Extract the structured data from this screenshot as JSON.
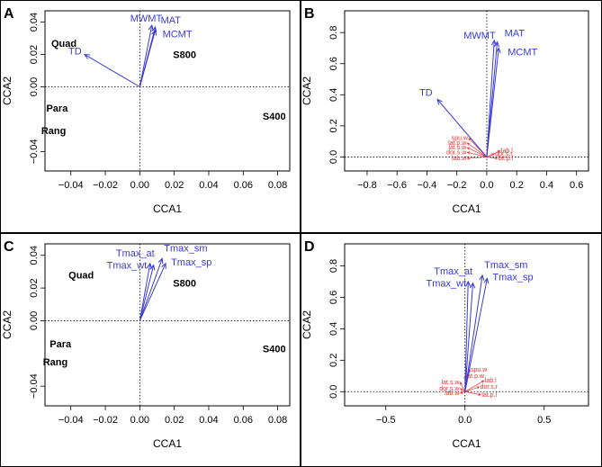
{
  "figure": {
    "palette": {
      "arrow": "#3a3ad8",
      "sites": "#000000",
      "species": "#e3342f",
      "frame": "#000000"
    }
  },
  "chart_data": [
    {
      "panel": "A",
      "type": "scatter",
      "xlabel": "CCA1",
      "ylabel": "CCA2",
      "xlim": [
        -0.055,
        0.087
      ],
      "ylim": [
        -0.052,
        0.047
      ],
      "xticks": [
        "−0.04",
        "−0.02",
        "0.00",
        "0.02",
        "0.04",
        "0.06",
        "0.08"
      ],
      "xtick_values": [
        -0.04,
        -0.02,
        0.0,
        0.02,
        0.04,
        0.06,
        0.08
      ],
      "yticks": [
        "−0.04",
        "0.00",
        "0.02",
        "0.04"
      ],
      "ytick_values": [
        -0.04,
        0.0,
        0.02,
        0.04
      ],
      "sites": [
        {
          "label": "Quad",
          "x": -0.044,
          "y": 0.027
        },
        {
          "label": "S800",
          "x": 0.026,
          "y": 0.02
        },
        {
          "label": "Para",
          "x": -0.048,
          "y": -0.013
        },
        {
          "label": "Rang",
          "x": -0.05,
          "y": -0.027
        },
        {
          "label": "S400",
          "x": 0.078,
          "y": -0.018
        }
      ],
      "vectors": [
        {
          "label": "MWMT",
          "x": 0.007,
          "y": 0.038
        },
        {
          "label": "MAT",
          "x": 0.009,
          "y": 0.037
        },
        {
          "label": "MCMT",
          "x": 0.009,
          "y": 0.035
        },
        {
          "label": "TD",
          "x": -0.032,
          "y": 0.02
        }
      ],
      "species": []
    },
    {
      "panel": "B",
      "type": "scatter",
      "xlabel": "CCA1",
      "ylabel": "CCA2",
      "xlim": [
        -0.95,
        0.68
      ],
      "ylim": [
        -0.09,
        0.94
      ],
      "xticks": [
        "−0.8",
        "−0.6",
        "−0.4",
        "−0.2",
        "0.0",
        "0.2",
        "0.4",
        "0.6"
      ],
      "xtick_values": [
        -0.8,
        -0.6,
        -0.4,
        -0.2,
        0.0,
        0.2,
        0.4,
        0.6
      ],
      "yticks": [
        "0.0",
        "0.2",
        "0.4",
        "0.6",
        "0.8"
      ],
      "ytick_values": [
        0.0,
        0.2,
        0.4,
        0.6,
        0.8
      ],
      "sites": [],
      "vectors": [
        {
          "label": "MWMT",
          "x": 0.05,
          "y": 0.75
        },
        {
          "label": "MAT",
          "x": 0.07,
          "y": 0.74
        },
        {
          "label": "MCMT",
          "x": 0.08,
          "y": 0.7
        },
        {
          "label": "TD",
          "x": -0.33,
          "y": 0.37
        }
      ],
      "species": [
        {
          "label": "spu.w",
          "x": -0.12,
          "y": 0.12
        },
        {
          "label": "lat.p.w",
          "x": -0.13,
          "y": 0.09
        },
        {
          "label": "lat.s.w",
          "x": -0.13,
          "y": 0.06
        },
        {
          "label": "dor.s.w",
          "x": -0.13,
          "y": 0.03
        },
        {
          "label": "dor.s.r",
          "x": 0.05,
          "y": 0.02
        },
        {
          "label": "lab.w",
          "x": -0.13,
          "y": -0.01
        },
        {
          "label": "lab.l",
          "x": 0.09,
          "y": 0.04
        },
        {
          "label": "lat.p.l",
          "x": 0.07,
          "y": -0.01
        }
      ]
    },
    {
      "panel": "C",
      "type": "scatter",
      "xlabel": "CCA1",
      "ylabel": "CCA2",
      "xlim": [
        -0.055,
        0.087
      ],
      "ylim": [
        -0.052,
        0.047
      ],
      "xticks": [
        "−0.04",
        "−0.02",
        "0.00",
        "0.02",
        "0.04",
        "0.06",
        "0.08"
      ],
      "xtick_values": [
        -0.04,
        -0.02,
        0.0,
        0.02,
        0.04,
        0.06,
        0.08
      ],
      "yticks": [
        "−0.04",
        "0.00",
        "0.02",
        "0.04"
      ],
      "ytick_values": [
        -0.04,
        0.0,
        0.02,
        0.04
      ],
      "sites": [
        {
          "label": "Quad",
          "x": -0.034,
          "y": 0.028
        },
        {
          "label": "S800",
          "x": 0.026,
          "y": 0.023
        },
        {
          "label": "Para",
          "x": -0.046,
          "y": -0.014
        },
        {
          "label": "Rang",
          "x": -0.049,
          "y": -0.025
        },
        {
          "label": "S400",
          "x": 0.078,
          "y": -0.017
        }
      ],
      "vectors": [
        {
          "label": "Tmax_at",
          "x": 0.006,
          "y": 0.035
        },
        {
          "label": "Tmax_wt",
          "x": 0.008,
          "y": 0.034
        },
        {
          "label": "Tmax_sm",
          "x": 0.013,
          "y": 0.038
        },
        {
          "label": "Tmax_sp",
          "x": 0.015,
          "y": 0.035
        }
      ],
      "species": []
    },
    {
      "panel": "D",
      "type": "scatter",
      "xlabel": "CCA1",
      "ylabel": "CCA2",
      "xlim": [
        -0.76,
        0.78
      ],
      "ylim": [
        -0.09,
        0.94
      ],
      "xticks": [
        "−0.5",
        "0.0",
        "0.5"
      ],
      "xtick_values": [
        -0.5,
        0.0,
        0.5
      ],
      "yticks": [
        "0.0",
        "0.2",
        "0.4",
        "0.6",
        "0.8"
      ],
      "ytick_values": [
        0.0,
        0.2,
        0.4,
        0.6,
        0.8
      ],
      "sites": [],
      "vectors": [
        {
          "label": "Tmax_at",
          "x": 0.02,
          "y": 0.7
        },
        {
          "label": "Tmax_wt",
          "x": 0.05,
          "y": 0.69
        },
        {
          "label": "Tmax_sm",
          "x": 0.11,
          "y": 0.74
        },
        {
          "label": "Tmax_sp",
          "x": 0.14,
          "y": 0.72
        }
      ],
      "species": [
        {
          "label": "spu.w",
          "x": 0.03,
          "y": 0.14
        },
        {
          "label": "lat.p.w",
          "x": 0.0,
          "y": 0.1
        },
        {
          "label": "lat.s.w",
          "x": -0.03,
          "y": 0.06
        },
        {
          "label": "dor.s.w",
          "x": -0.03,
          "y": 0.02
        },
        {
          "label": "dor.s.r",
          "x": 0.09,
          "y": 0.03
        },
        {
          "label": "lab.w",
          "x": -0.03,
          "y": -0.01
        },
        {
          "label": "lab.l",
          "x": 0.12,
          "y": 0.07
        },
        {
          "label": "lat.p.l",
          "x": 0.1,
          "y": -0.02
        }
      ]
    }
  ]
}
